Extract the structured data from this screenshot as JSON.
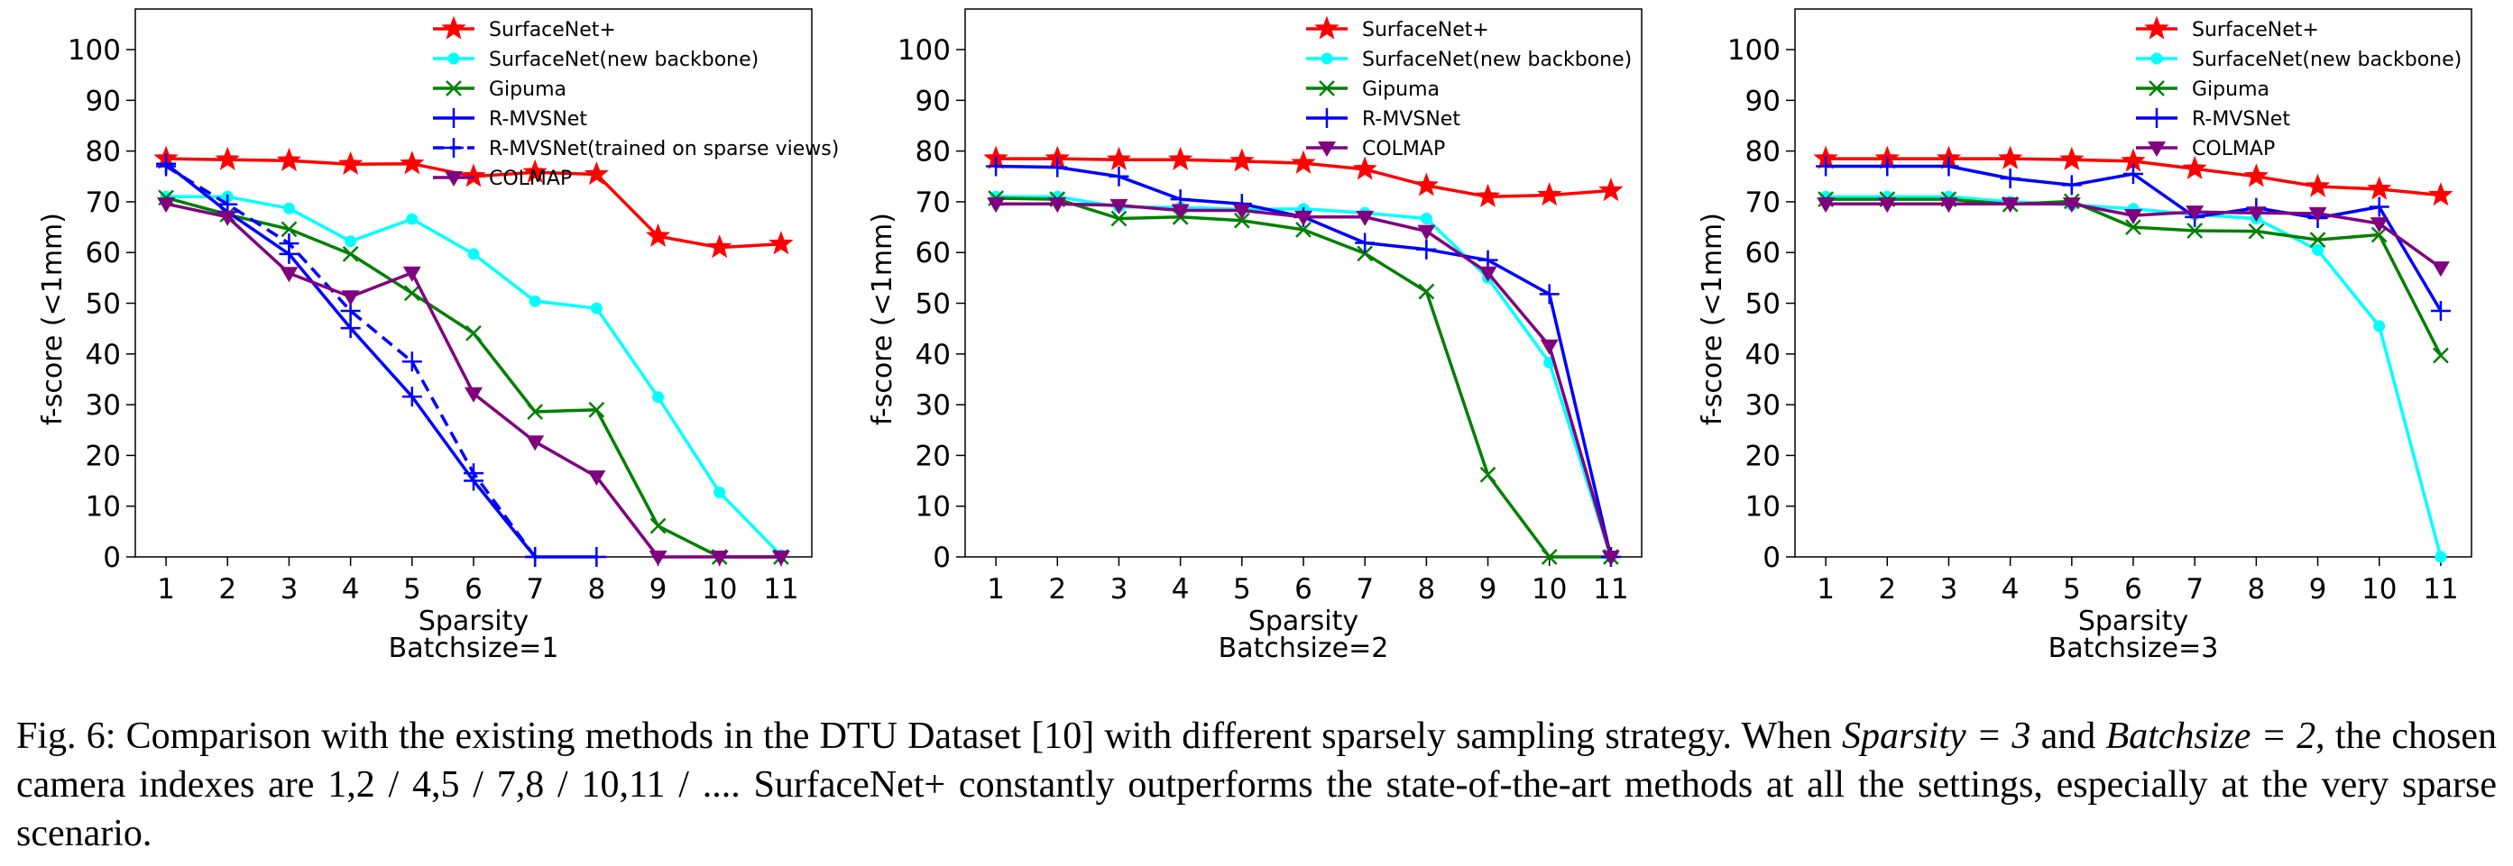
{
  "chart_data": [
    {
      "type": "line",
      "xlabel": "Sparsity",
      "subtitle": "Batchsize=1",
      "ylabel": "f-score (<1mm)",
      "x": [
        1,
        2,
        3,
        4,
        5,
        6,
        7,
        8,
        9,
        10,
        11
      ],
      "ylim": [
        0,
        108
      ],
      "yticks": [
        0,
        10,
        20,
        30,
        40,
        50,
        60,
        70,
        80,
        90,
        100
      ],
      "legend": "top",
      "series": [
        {
          "name": "SurfaceNet+",
          "color": "#ff0000",
          "marker": "star",
          "dash": false,
          "values": [
            78.5,
            78.3,
            78.1,
            77.4,
            77.5,
            75.0,
            75.8,
            75.4,
            63.2,
            61.0,
            61.7
          ]
        },
        {
          "name": "SurfaceNet(new backbone)",
          "color": "#00ffff",
          "marker": "dot",
          "dash": false,
          "values": [
            71.0,
            71.0,
            68.7,
            62.2,
            66.6,
            59.7,
            50.4,
            49.0,
            31.5,
            12.7,
            0.3
          ]
        },
        {
          "name": "Gipuma",
          "color": "#008000",
          "marker": "x",
          "dash": false,
          "values": [
            70.8,
            67.5,
            64.6,
            59.7,
            52.0,
            44.1,
            28.6,
            29.0,
            6.1,
            0.0,
            0.0
          ]
        },
        {
          "name": "R-MVSNet",
          "color": "#0000ff",
          "marker": "plus",
          "dash": false,
          "values": [
            77.5,
            68.0,
            59.7,
            45.1,
            31.6,
            15.0,
            0.0,
            0.0,
            null,
            null,
            null
          ]
        },
        {
          "name": "R-MVSNet(trained on sparse views)",
          "color": "#0000ff",
          "marker": "plus",
          "dash": true,
          "values": [
            77.0,
            69.5,
            61.8,
            48.5,
            38.5,
            16.5,
            0.0,
            null,
            null,
            null,
            null
          ]
        },
        {
          "name": "COLMAP",
          "color": "#800080",
          "marker": "tri",
          "dash": false,
          "values": [
            69.6,
            67.0,
            55.9,
            51.3,
            56.0,
            32.2,
            22.7,
            15.8,
            0.0,
            0.0,
            0.0
          ]
        }
      ]
    },
    {
      "type": "line",
      "xlabel": "Sparsity",
      "subtitle": "Batchsize=2",
      "ylabel": "f-score (<1mm)",
      "x": [
        1,
        2,
        3,
        4,
        5,
        6,
        7,
        8,
        9,
        10,
        11
      ],
      "ylim": [
        0,
        108
      ],
      "yticks": [
        0,
        10,
        20,
        30,
        40,
        50,
        60,
        70,
        80,
        90,
        100
      ],
      "legend": "top-right",
      "series": [
        {
          "name": "SurfaceNet+",
          "color": "#ff0000",
          "marker": "star",
          "dash": false,
          "values": [
            78.5,
            78.5,
            78.3,
            78.3,
            78.0,
            77.6,
            76.4,
            73.2,
            71.0,
            71.3,
            72.2
          ]
        },
        {
          "name": "SurfaceNet(new backbone)",
          "color": "#00ffff",
          "marker": "dot",
          "dash": false,
          "values": [
            71.0,
            71.0,
            69.0,
            68.9,
            68.5,
            68.6,
            67.8,
            66.7,
            55.0,
            38.3,
            0.0
          ]
        },
        {
          "name": "Gipuma",
          "color": "#008000",
          "marker": "x",
          "dash": false,
          "values": [
            70.7,
            70.5,
            66.7,
            67.0,
            66.3,
            64.5,
            59.8,
            52.3,
            16.2,
            0.0,
            0.0
          ]
        },
        {
          "name": "R-MVSNet",
          "color": "#0000ff",
          "marker": "plus",
          "dash": false,
          "values": [
            77.0,
            76.8,
            75.0,
            70.5,
            69.6,
            67.0,
            61.9,
            60.6,
            58.5,
            51.8,
            0.0
          ]
        },
        {
          "name": "COLMAP",
          "color": "#800080",
          "marker": "tri",
          "dash": false,
          "values": [
            69.6,
            69.6,
            69.3,
            68.3,
            68.3,
            67.0,
            67.0,
            64.2,
            56.0,
            41.6,
            0.0
          ]
        }
      ]
    },
    {
      "type": "line",
      "xlabel": "Sparsity",
      "subtitle": "Batchsize=3",
      "ylabel": "f-score (<1mm)",
      "x": [
        1,
        2,
        3,
        4,
        5,
        6,
        7,
        8,
        9,
        10,
        11
      ],
      "ylim": [
        0,
        108
      ],
      "yticks": [
        0,
        10,
        20,
        30,
        40,
        50,
        60,
        70,
        80,
        90,
        100
      ],
      "legend": "top-right",
      "series": [
        {
          "name": "SurfaceNet+",
          "color": "#ff0000",
          "marker": "star",
          "dash": false,
          "values": [
            78.5,
            78.5,
            78.5,
            78.5,
            78.3,
            78.0,
            76.5,
            75.0,
            73.0,
            72.5,
            71.3
          ]
        },
        {
          "name": "SurfaceNet(new backbone)",
          "color": "#00ffff",
          "marker": "dot",
          "dash": false,
          "values": [
            71.0,
            71.0,
            71.0,
            70.0,
            69.4,
            68.6,
            67.5,
            66.7,
            60.5,
            45.5,
            0.0
          ]
        },
        {
          "name": "Gipuma",
          "color": "#008000",
          "marker": "x",
          "dash": false,
          "values": [
            70.5,
            70.5,
            70.5,
            69.5,
            70.1,
            65.0,
            64.3,
            64.2,
            62.5,
            63.5,
            39.7
          ]
        },
        {
          "name": "R-MVSNet",
          "color": "#0000ff",
          "marker": "plus",
          "dash": false,
          "values": [
            77.0,
            77.0,
            77.0,
            74.6,
            73.3,
            75.5,
            67.0,
            68.8,
            66.8,
            69.0,
            48.5
          ]
        },
        {
          "name": "COLMAP",
          "color": "#800080",
          "marker": "tri",
          "dash": false,
          "values": [
            69.6,
            69.6,
            69.6,
            69.6,
            69.6,
            67.3,
            68.0,
            67.8,
            67.7,
            65.7,
            57.0
          ]
        }
      ]
    }
  ],
  "caption": {
    "label": "Fig. 6: Comparison with the existing methods in the DTU Dataset [10] with different sparsely sampling strategy. When ",
    "math1": "Sparsity = 3",
    "and": " and ",
    "math2": "Batchsize = 2",
    "rest": ", the chosen camera indexes are 1,2 / 4,5 / 7,8 / 10,11 / .... SurfaceNet+ constantly outperforms the state-of-the-art methods at all the settings, especially at the very sparse scenario."
  }
}
